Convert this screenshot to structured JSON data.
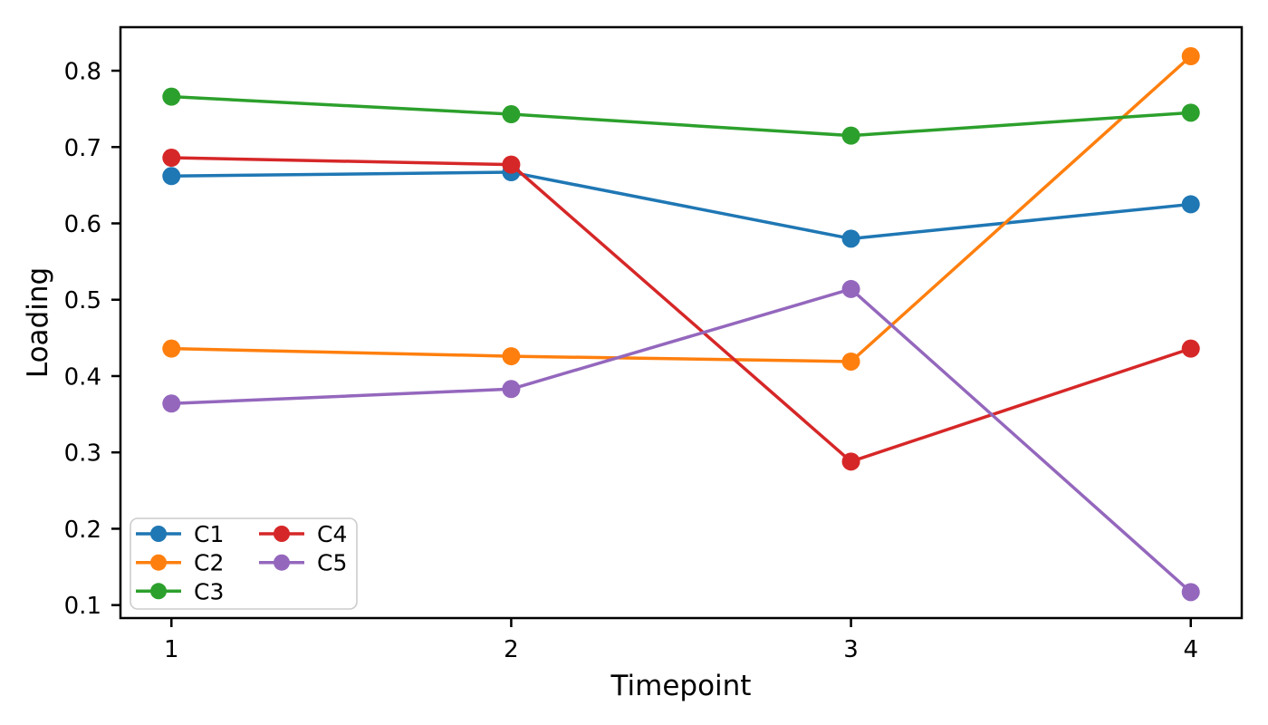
{
  "chart_data": {
    "type": "line",
    "title": "",
    "xlabel": "Timepoint",
    "ylabel": "Loading",
    "x": [
      1,
      2,
      3,
      4
    ],
    "xtick_labels": [
      "1",
      "2",
      "3",
      "4"
    ],
    "ytick_values": [
      0.1,
      0.2,
      0.3,
      0.4,
      0.5,
      0.6,
      0.7,
      0.8
    ],
    "ytick_labels": [
      "0.1",
      "0.2",
      "0.3",
      "0.4",
      "0.5",
      "0.6",
      "0.7",
      "0.8"
    ],
    "xlim": [
      0.85,
      4.15
    ],
    "ylim": [
      0.083,
      0.857
    ],
    "grid": false,
    "legend": {
      "position": "lower-left",
      "columns": 2,
      "entries": [
        "C1",
        "C2",
        "C3",
        "C4",
        "C5"
      ]
    },
    "series": [
      {
        "name": "C1",
        "color": "#1f77b4",
        "values": [
          0.662,
          0.667,
          0.58,
          0.625
        ]
      },
      {
        "name": "C2",
        "color": "#ff7f0e",
        "values": [
          0.436,
          0.426,
          0.419,
          0.819
        ]
      },
      {
        "name": "C3",
        "color": "#2ca02c",
        "values": [
          0.766,
          0.743,
          0.715,
          0.745
        ]
      },
      {
        "name": "C4",
        "color": "#d62728",
        "values": [
          0.686,
          0.677,
          0.288,
          0.436
        ]
      },
      {
        "name": "C5",
        "color": "#9467bd",
        "values": [
          0.364,
          0.383,
          0.514,
          0.117
        ]
      }
    ],
    "colors": {
      "axis": "#000000",
      "background": "#ffffff",
      "legend_border": "#cccccc",
      "legend_fill": "#ffffff"
    }
  }
}
